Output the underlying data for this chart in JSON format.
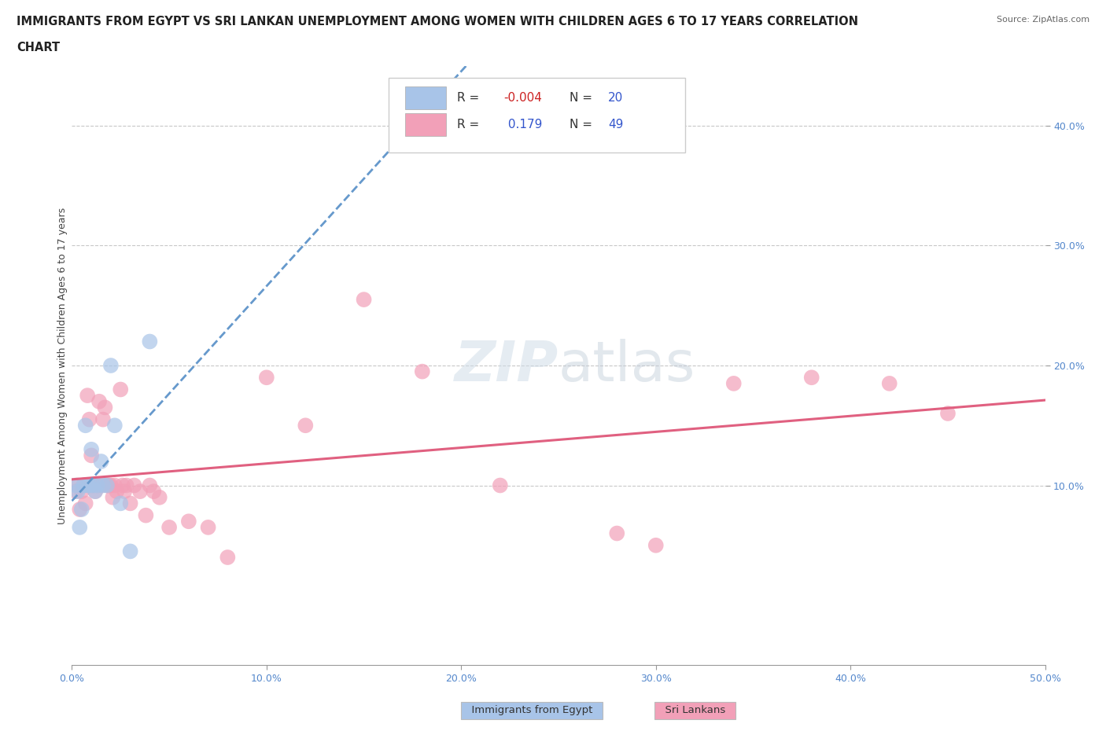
{
  "title_line1": "IMMIGRANTS FROM EGYPT VS SRI LANKAN UNEMPLOYMENT AMONG WOMEN WITH CHILDREN AGES 6 TO 17 YEARS CORRELATION",
  "title_line2": "CHART",
  "source": "Source: ZipAtlas.com",
  "ylabel": "Unemployment Among Women with Children Ages 6 to 17 years",
  "xlim": [
    0.0,
    0.5
  ],
  "ylim": [
    -0.05,
    0.45
  ],
  "xticks": [
    0.0,
    0.1,
    0.2,
    0.3,
    0.4,
    0.5
  ],
  "xticklabels": [
    "0.0%",
    "10.0%",
    "20.0%",
    "30.0%",
    "40.0%",
    "50.0%"
  ],
  "yticks_right": [
    0.1,
    0.2,
    0.3,
    0.4
  ],
  "ytick_right_labels": [
    "10.0%",
    "20.0%",
    "30.0%",
    "40.0%"
  ],
  "grid_color": "#c8c8c8",
  "background_color": "#ffffff",
  "watermark": "ZIPatlas",
  "egypt_color": "#a8c4e8",
  "srilanka_color": "#f2a0b8",
  "egypt_line_color": "#6699cc",
  "srilanka_line_color": "#e06080",
  "egypt_R": -0.004,
  "egypt_N": 20,
  "srilanka_R": 0.179,
  "srilanka_N": 49,
  "egypt_x": [
    0.002,
    0.003,
    0.004,
    0.005,
    0.006,
    0.007,
    0.008,
    0.009,
    0.01,
    0.011,
    0.012,
    0.013,
    0.015,
    0.016,
    0.018,
    0.02,
    0.022,
    0.025,
    0.03,
    0.04
  ],
  "egypt_y": [
    0.1,
    0.095,
    0.065,
    0.08,
    0.1,
    0.15,
    0.1,
    0.1,
    0.13,
    0.1,
    0.095,
    0.1,
    0.12,
    0.1,
    0.1,
    0.2,
    0.15,
    0.085,
    0.045,
    0.22
  ],
  "srilanka_x": [
    0.002,
    0.003,
    0.004,
    0.005,
    0.006,
    0.007,
    0.008,
    0.009,
    0.01,
    0.01,
    0.011,
    0.012,
    0.013,
    0.014,
    0.015,
    0.016,
    0.017,
    0.018,
    0.019,
    0.02,
    0.021,
    0.022,
    0.023,
    0.025,
    0.026,
    0.027,
    0.028,
    0.03,
    0.032,
    0.035,
    0.038,
    0.04,
    0.042,
    0.045,
    0.05,
    0.06,
    0.07,
    0.08,
    0.1,
    0.12,
    0.15,
    0.18,
    0.22,
    0.28,
    0.3,
    0.34,
    0.38,
    0.42,
    0.45
  ],
  "srilanka_y": [
    0.095,
    0.1,
    0.08,
    0.095,
    0.1,
    0.085,
    0.175,
    0.155,
    0.1,
    0.125,
    0.1,
    0.095,
    0.1,
    0.17,
    0.1,
    0.155,
    0.165,
    0.1,
    0.1,
    0.1,
    0.09,
    0.1,
    0.095,
    0.18,
    0.1,
    0.095,
    0.1,
    0.085,
    0.1,
    0.095,
    0.075,
    0.1,
    0.095,
    0.09,
    0.065,
    0.07,
    0.065,
    0.04,
    0.19,
    0.15,
    0.255,
    0.195,
    0.1,
    0.06,
    0.05,
    0.185,
    0.19,
    0.185,
    0.16
  ]
}
